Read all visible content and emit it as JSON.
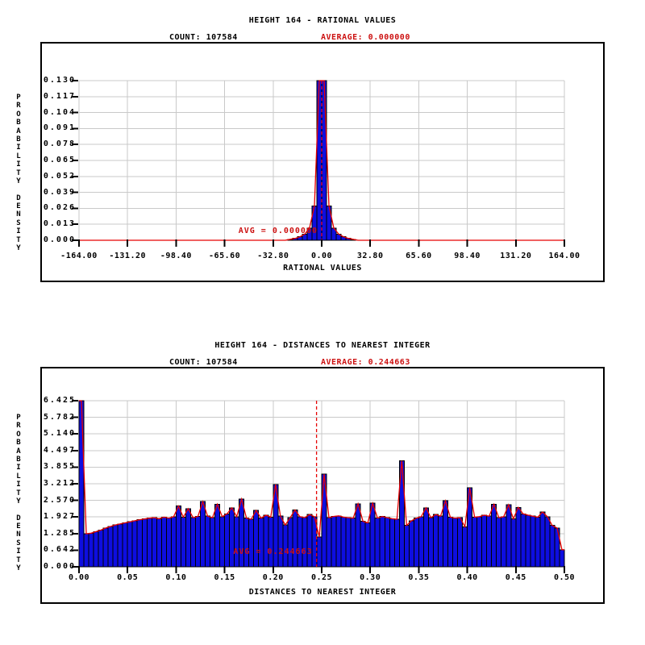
{
  "window": {
    "background": "#ffffff"
  },
  "colors": {
    "bar_fill": "#0e0ee0",
    "bar_outline": "#000000",
    "envelope": "#e60000",
    "red_text": "#cc1111",
    "grid": "#c9c9c9",
    "axis": "#000000",
    "box_border": "#000000",
    "text": "#000000"
  },
  "chart_data": [
    {
      "type": "bar",
      "title": "HEIGHT 164 - RATIONAL VALUES",
      "count_label": "COUNT: 107584",
      "average_label": "AVERAGE: 0.000000",
      "avg_annotation": "AVG = 0.000000",
      "xlabel": "RATIONAL VALUES",
      "ylabel": "PROBABILITY DENSITY",
      "average_value": 0.0,
      "xlim": [
        -164,
        164
      ],
      "ylim": [
        0,
        0.13
      ],
      "grid": true,
      "y_ticks": [
        "0.130",
        "0.117",
        "0.104",
        "0.091",
        "0.078",
        "0.065",
        "0.052",
        "0.039",
        "0.026",
        "0.013",
        "0.000"
      ],
      "x_ticks": [
        "-164.00",
        "-131.20",
        "-98.40",
        "-65.60",
        "-32.80",
        "0.00",
        "32.80",
        "65.60",
        "98.40",
        "131.20",
        "164.00"
      ],
      "bin_width": 3.28,
      "bins": [
        0,
        0,
        0,
        0,
        0,
        0,
        0,
        0,
        0,
        0,
        0,
        0,
        0,
        0,
        0,
        0,
        0,
        0,
        0,
        0,
        0,
        0,
        0,
        0,
        0,
        0,
        0,
        0,
        0,
        0,
        0,
        0,
        0,
        0,
        0,
        0,
        0,
        0,
        0,
        0,
        0,
        0,
        0,
        0.0008,
        0.0015,
        0.0028,
        0.005,
        0.01,
        0.028,
        0.13,
        0.13,
        0.028,
        0.01,
        0.005,
        0.0028,
        0.0015,
        0.0008,
        0,
        0,
        0,
        0,
        0,
        0,
        0,
        0,
        0,
        0,
        0,
        0,
        0,
        0,
        0,
        0,
        0,
        0,
        0,
        0,
        0,
        0,
        0,
        0,
        0,
        0,
        0,
        0,
        0,
        0,
        0,
        0,
        0,
        0,
        0,
        0,
        0,
        0,
        0,
        0,
        0,
        0,
        0
      ]
    },
    {
      "type": "bar",
      "title": "HEIGHT 164 - DISTANCES TO NEAREST INTEGER",
      "count_label": "COUNT: 107584",
      "average_label": "AVERAGE: 0.244663",
      "avg_annotation": "AVG = 0.244663",
      "xlabel": "DISTANCES TO NEAREST INTEGER",
      "ylabel": "PROBABILITY DENSITY",
      "average_value": 0.244663,
      "xlim": [
        0,
        0.5
      ],
      "ylim": [
        0,
        6.425
      ],
      "grid": true,
      "y_ticks": [
        "6.425",
        "5.782",
        "5.140",
        "4.497",
        "3.855",
        "3.212",
        "2.570",
        "1.927",
        "1.285",
        "0.642",
        "0.000"
      ],
      "x_ticks": [
        "0.00",
        "0.05",
        "0.10",
        "0.15",
        "0.20",
        "0.25",
        "0.30",
        "0.35",
        "0.40",
        "0.45",
        "0.50"
      ],
      "bin_width": 0.005,
      "bins": [
        6.43,
        1.28,
        1.3,
        1.36,
        1.42,
        1.5,
        1.56,
        1.62,
        1.66,
        1.7,
        1.74,
        1.78,
        1.82,
        1.85,
        1.88,
        1.9,
        1.86,
        1.92,
        1.88,
        1.94,
        2.35,
        1.92,
        2.25,
        1.9,
        1.95,
        2.52,
        1.96,
        1.9,
        2.42,
        1.94,
        2.05,
        2.28,
        1.94,
        2.62,
        1.88,
        1.84,
        2.18,
        1.88,
        2.0,
        1.92,
        3.18,
        1.96,
        1.62,
        1.9,
        2.2,
        1.94,
        1.9,
        2.02,
        1.94,
        1.15,
        3.58,
        1.9,
        1.95,
        1.97,
        1.92,
        1.9,
        1.88,
        2.44,
        1.76,
        1.7,
        2.46,
        1.88,
        1.95,
        1.9,
        1.86,
        1.84,
        4.1,
        1.6,
        1.78,
        1.88,
        1.94,
        2.28,
        1.9,
        2.02,
        1.96,
        2.55,
        1.92,
        1.88,
        1.9,
        1.55,
        3.05,
        1.92,
        1.94,
        2.0,
        1.96,
        2.42,
        1.9,
        1.94,
        2.4,
        1.86,
        2.3,
        2.05,
        2.0,
        1.96,
        1.92,
        2.12,
        1.94,
        1.6,
        1.5,
        0.66
      ]
    }
  ]
}
